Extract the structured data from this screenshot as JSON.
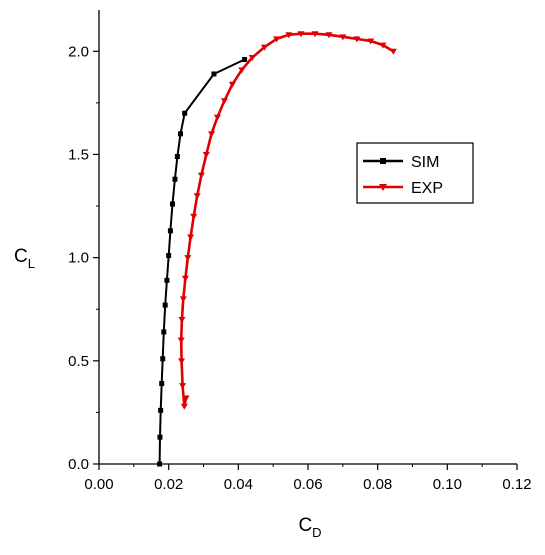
{
  "chart_data": {
    "type": "line",
    "title": "",
    "xlabel": "C",
    "xlabel_sub": "D",
    "ylabel": "C",
    "ylabel_sub": "L",
    "xlim": [
      0.0,
      0.12
    ],
    "ylim": [
      0.0,
      2.2
    ],
    "x_ticks": [
      0.0,
      0.02,
      0.04,
      0.06,
      0.08,
      0.1,
      0.12
    ],
    "x_tick_labels": [
      "0.00",
      "0.02",
      "0.04",
      "0.06",
      "0.08",
      "0.10",
      "0.12"
    ],
    "y_ticks": [
      0.0,
      0.5,
      1.0,
      1.5,
      2.0
    ],
    "y_tick_labels": [
      "0.0",
      "0.5",
      "1.0",
      "1.5",
      "2.0"
    ],
    "grid": false,
    "legend_position": "center-right",
    "series": [
      {
        "name": "SIM",
        "color": "#000000",
        "marker": "square",
        "points": [
          [
            0.0174,
            0.0
          ],
          [
            0.0175,
            0.13
          ],
          [
            0.0177,
            0.26
          ],
          [
            0.018,
            0.39
          ],
          [
            0.0183,
            0.51
          ],
          [
            0.0186,
            0.64
          ],
          [
            0.019,
            0.77
          ],
          [
            0.0195,
            0.89
          ],
          [
            0.02,
            1.01
          ],
          [
            0.0205,
            1.13
          ],
          [
            0.0211,
            1.26
          ],
          [
            0.0218,
            1.38
          ],
          [
            0.0225,
            1.49
          ],
          [
            0.0234,
            1.6
          ],
          [
            0.0246,
            1.7
          ],
          [
            0.033,
            1.89
          ],
          [
            0.0418,
            1.96
          ]
        ]
      },
      {
        "name": "EXP",
        "color": "#e00000",
        "marker": "triangle-down",
        "points": [
          [
            0.025,
            0.32
          ],
          [
            0.0245,
            0.28
          ],
          [
            0.024,
            0.38
          ],
          [
            0.0237,
            0.5
          ],
          [
            0.0236,
            0.6
          ],
          [
            0.0238,
            0.7
          ],
          [
            0.0242,
            0.8
          ],
          [
            0.0248,
            0.9
          ],
          [
            0.0255,
            1.0
          ],
          [
            0.0263,
            1.1
          ],
          [
            0.0272,
            1.2
          ],
          [
            0.0282,
            1.3
          ],
          [
            0.0294,
            1.4
          ],
          [
            0.0308,
            1.5
          ],
          [
            0.0323,
            1.6
          ],
          [
            0.034,
            1.68
          ],
          [
            0.036,
            1.76
          ],
          [
            0.0383,
            1.84
          ],
          [
            0.041,
            1.91
          ],
          [
            0.044,
            1.97
          ],
          [
            0.0475,
            2.02
          ],
          [
            0.051,
            2.06
          ],
          [
            0.0545,
            2.08
          ],
          [
            0.058,
            2.085
          ],
          [
            0.062,
            2.085
          ],
          [
            0.066,
            2.08
          ],
          [
            0.07,
            2.07
          ],
          [
            0.074,
            2.06
          ],
          [
            0.078,
            2.05
          ],
          [
            0.0815,
            2.03
          ],
          [
            0.0845,
            2.0
          ]
        ]
      }
    ]
  }
}
